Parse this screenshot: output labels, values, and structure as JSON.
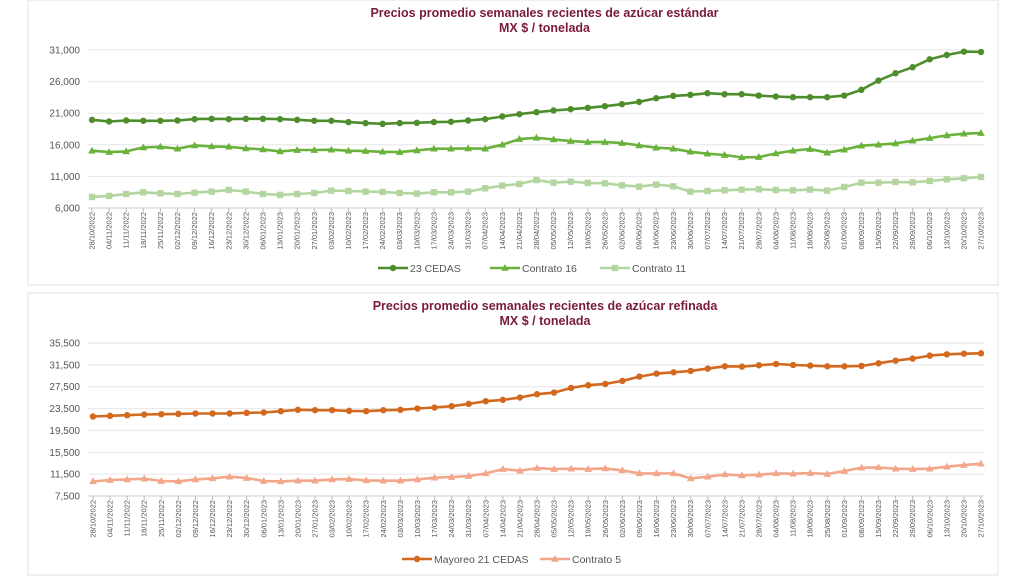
{
  "chart_data": [
    {
      "type": "line",
      "title": "Precios promedio semanales recientes de azúcar estándar",
      "subtitle": "MX $ / tonelada",
      "xlabel": "",
      "ylabel": "",
      "ylim": [
        6000,
        31000
      ],
      "yticks": [
        6000,
        11000,
        16000,
        21000,
        26000,
        31000
      ],
      "ytick_labels": [
        "6,000",
        "11,000",
        "16,000",
        "21,000",
        "26,000",
        "31,000"
      ],
      "grid": true,
      "legend_position": "bottom",
      "x": [
        "28/10/2022",
        "04/11/2022",
        "11/11/2022",
        "18/11/2022",
        "25/11/2022",
        "02/12/2022",
        "09/12/2022",
        "16/12/2022",
        "23/12/2022",
        "30/12/2022",
        "06/01/2023",
        "13/01/2023",
        "20/01/2023",
        "27/01/2023",
        "03/02/2023",
        "10/02/2023",
        "17/02/2023",
        "24/02/2023",
        "03/03/2023",
        "10/03/2023",
        "17/03/2023",
        "24/03/2023",
        "31/03/2023",
        "07/04/2023",
        "14/04/2023",
        "21/04/2023",
        "28/04/2023",
        "05/05/2023",
        "12/05/2023",
        "19/05/2023",
        "26/05/2023",
        "02/06/2023",
        "09/06/2023",
        "16/06/2023",
        "23/06/2023",
        "30/06/2023",
        "07/07/2023",
        "14/07/2023",
        "21/07/2023",
        "28/07/2023",
        "04/08/2023",
        "11/08/2023",
        "18/08/2023",
        "25/08/2023",
        "01/09/2023",
        "08/09/2023",
        "15/09/2023",
        "22/09/2023",
        "29/09/2023",
        "06/10/2023",
        "13/10/2023",
        "20/10/2023",
        "27/10/2023"
      ],
      "series": [
        {
          "name": "23 CEDAS",
          "color": "#4e8d2c",
          "marker": "circle",
          "values": [
            19950,
            19690,
            19850,
            19800,
            19800,
            19850,
            20060,
            20110,
            20060,
            20110,
            20110,
            20060,
            19950,
            19800,
            19800,
            19590,
            19430,
            19320,
            19430,
            19480,
            19590,
            19640,
            19850,
            20060,
            20480,
            20850,
            21160,
            21430,
            21640,
            21850,
            22110,
            22430,
            22790,
            23370,
            23740,
            23900,
            24160,
            24000,
            24000,
            23790,
            23640,
            23530,
            23530,
            23530,
            23790,
            24690,
            26160,
            27320,
            28270,
            29530,
            30210,
            30740,
            30680
          ]
        },
        {
          "name": "Contrato 16",
          "color": "#6ab23c",
          "marker": "triangle",
          "values": [
            15060,
            14850,
            14960,
            15590,
            15690,
            15380,
            15900,
            15750,
            15690,
            15430,
            15270,
            14960,
            15170,
            15170,
            15220,
            15060,
            15010,
            14900,
            14850,
            15110,
            15380,
            15380,
            15430,
            15380,
            16010,
            16900,
            17110,
            16850,
            16590,
            16430,
            16430,
            16270,
            15900,
            15540,
            15380,
            14900,
            14590,
            14380,
            14010,
            14060,
            14640,
            15060,
            15330,
            14750,
            15220,
            15850,
            16010,
            16220,
            16640,
            17060,
            17480,
            17750,
            17850
          ]
        },
        {
          "name": "Contrato 11",
          "color": "#b3d6a0",
          "marker": "square",
          "values": [
            7750,
            7910,
            8220,
            8490,
            8330,
            8220,
            8430,
            8590,
            8850,
            8590,
            8220,
            8070,
            8220,
            8380,
            8750,
            8700,
            8590,
            8540,
            8380,
            8280,
            8490,
            8490,
            8590,
            9120,
            9540,
            9800,
            10430,
            10010,
            10170,
            9960,
            9910,
            9590,
            9380,
            9700,
            9430,
            8590,
            8700,
            8800,
            8910,
            8960,
            8850,
            8800,
            8910,
            8750,
            9330,
            10010,
            10010,
            10120,
            10060,
            10280,
            10540,
            10700,
            10910
          ]
        }
      ]
    },
    {
      "type": "line",
      "title": "Precios promedio semanales recientes de azúcar refinada",
      "subtitle": "MX $ / tonelada",
      "xlabel": "",
      "ylabel": "",
      "ylim": [
        7500,
        35500
      ],
      "yticks": [
        7500,
        11500,
        15500,
        19500,
        23500,
        27500,
        31500,
        35500
      ],
      "ytick_labels": [
        "7,500",
        "11,500",
        "15,500",
        "19,500",
        "23,500",
        "27,500",
        "31,500",
        "35,500"
      ],
      "grid": true,
      "legend_position": "bottom",
      "x": [
        "28/10/2022",
        "04/11/2022",
        "11/11/2022",
        "18/11/2022",
        "25/11/2022",
        "02/12/2022",
        "09/12/2022",
        "16/12/2022",
        "23/12/2022",
        "30/12/2022",
        "06/01/2023",
        "13/01/2023",
        "20/01/2023",
        "27/01/2023",
        "03/02/2023",
        "10/02/2023",
        "17/02/2023",
        "24/02/2023",
        "03/03/2023",
        "10/03/2023",
        "17/03/2023",
        "24/03/2023",
        "31/03/2023",
        "07/04/2023",
        "14/04/2023",
        "21/04/2023",
        "28/04/2023",
        "05/05/2023",
        "12/05/2023",
        "19/05/2023",
        "26/05/2023",
        "02/06/2023",
        "09/06/2023",
        "16/06/2023",
        "23/06/2023",
        "30/06/2023",
        "07/07/2023",
        "14/07/2023",
        "21/07/2023",
        "28/07/2023",
        "04/08/2023",
        "11/08/2023",
        "18/08/2023",
        "25/08/2023",
        "01/09/2023",
        "08/09/2023",
        "15/09/2023",
        "22/09/2023",
        "29/09/2023",
        "06/10/2023",
        "13/10/2023",
        "20/10/2023",
        "27/10/2023"
      ],
      "series": [
        {
          "name": "Mayoreo 21 CEDAS",
          "color": "#d2691e",
          "marker": "circle",
          "values": [
            22050,
            22170,
            22290,
            22410,
            22470,
            22530,
            22600,
            22600,
            22600,
            22720,
            22780,
            23020,
            23270,
            23210,
            23210,
            23080,
            23020,
            23210,
            23270,
            23510,
            23690,
            23930,
            24360,
            24850,
            25090,
            25520,
            26130,
            26430,
            27280,
            27770,
            28010,
            28560,
            29350,
            29900,
            30140,
            30390,
            30810,
            31240,
            31180,
            31420,
            31660,
            31480,
            31360,
            31240,
            31240,
            31300,
            31790,
            32270,
            32640,
            33190,
            33430,
            33550,
            33610
          ]
        },
        {
          "name": "Contrato 5",
          "color": "#f2a68a",
          "marker": "triangle",
          "values": [
            10180,
            10420,
            10540,
            10670,
            10240,
            10180,
            10540,
            10730,
            11030,
            10790,
            10240,
            10180,
            10300,
            10300,
            10540,
            10600,
            10360,
            10300,
            10300,
            10540,
            10850,
            10970,
            11150,
            11640,
            12430,
            12130,
            12610,
            12430,
            12490,
            12430,
            12550,
            12190,
            11640,
            11640,
            11640,
            10730,
            11030,
            11460,
            11270,
            11390,
            11640,
            11580,
            11700,
            11520,
            12070,
            12670,
            12740,
            12490,
            12430,
            12490,
            12860,
            13160,
            13410
          ]
        }
      ]
    }
  ]
}
